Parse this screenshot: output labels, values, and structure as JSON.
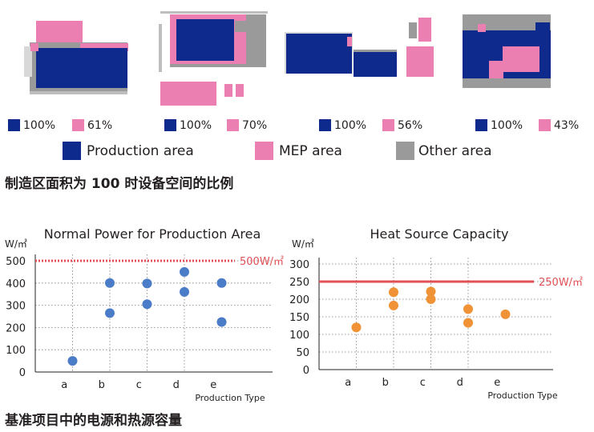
{
  "colors": {
    "production": "#0d2a8c",
    "mep": "#ec7fb1",
    "other": "#9a9a9a",
    "blue_dot": "#4a7cc7",
    "orange_dot": "#f09236",
    "limit_line": "#e05056"
  },
  "plans": [
    {
      "production_pct": "100%",
      "mep_pct": "61%"
    },
    {
      "production_pct": "100%",
      "mep_pct": "70%"
    },
    {
      "production_pct": "100%",
      "mep_pct": "56%"
    },
    {
      "production_pct": "100%",
      "mep_pct": "43%"
    }
  ],
  "legend": [
    {
      "label": "Production area",
      "icon": "production-swatch"
    },
    {
      "label": "MEP area",
      "icon": "mep-swatch"
    },
    {
      "label": "Other area",
      "icon": "other-swatch"
    }
  ],
  "caption_top": "制造区面积为 100 时设备空间的比例",
  "caption_bottom": "基准项目中的电源和热源容量",
  "chart_data": [
    {
      "type": "scatter",
      "title": "Normal Power for Production Area",
      "ylabel": "W/㎡",
      "xlabel": "Production Type",
      "categories": [
        "a",
        "b",
        "c",
        "d",
        "e"
      ],
      "ylim": [
        0,
        500
      ],
      "yticks": [
        0,
        100,
        200,
        300,
        400,
        500
      ],
      "grid": true,
      "series": [
        {
          "points": [
            {
              "x": 1.0,
              "y": 50
            },
            {
              "x": 2.0,
              "y": 400
            },
            {
              "x": 2.0,
              "y": 265
            },
            {
              "x": 3.0,
              "y": 398
            },
            {
              "x": 3.0,
              "y": 305
            },
            {
              "x": 4.0,
              "y": 450
            },
            {
              "x": 4.0,
              "y": 360
            },
            {
              "x": 5.0,
              "y": 400
            },
            {
              "x": 5.0,
              "y": 225
            }
          ]
        }
      ],
      "reference_line": {
        "value": 500,
        "label": "500W/㎡",
        "style": "dotted"
      }
    },
    {
      "type": "scatter",
      "title": "Heat Source Capacity",
      "ylabel": "W/㎡",
      "xlabel": "Production Type",
      "categories": [
        "a",
        "b",
        "c",
        "d",
        "e"
      ],
      "ylim": [
        0,
        300
      ],
      "yticks": [
        0,
        50,
        100,
        150,
        200,
        250,
        300
      ],
      "grid": true,
      "series": [
        {
          "points": [
            {
              "x": 1.0,
              "y": 120
            },
            {
              "x": 2.0,
              "y": 220
            },
            {
              "x": 2.0,
              "y": 182
            },
            {
              "x": 3.0,
              "y": 222
            },
            {
              "x": 3.0,
              "y": 200
            },
            {
              "x": 4.0,
              "y": 172
            },
            {
              "x": 4.0,
              "y": 133
            },
            {
              "x": 5.0,
              "y": 157
            }
          ]
        }
      ],
      "reference_line": {
        "value": 250,
        "label": "250W/㎡",
        "style": "solid"
      }
    }
  ]
}
